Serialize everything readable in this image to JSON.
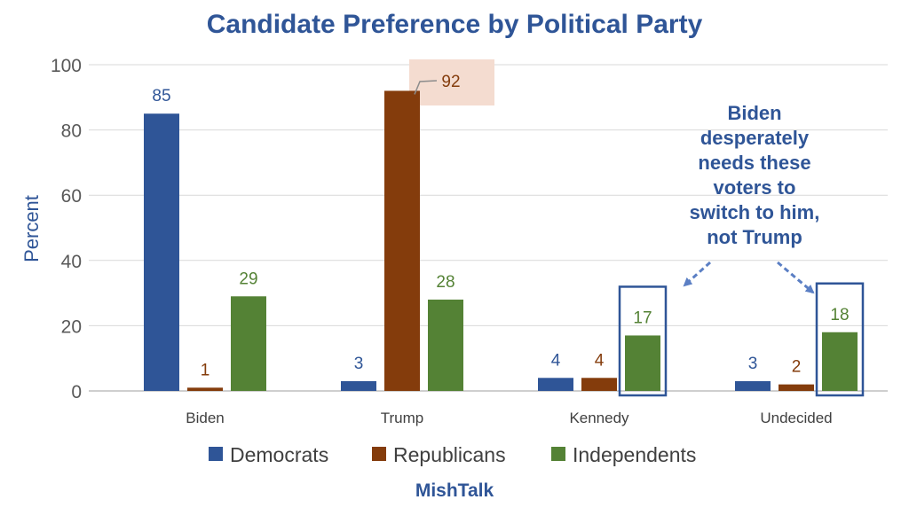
{
  "chart_data": {
    "type": "bar",
    "title": "Candidate Preference by Political Party",
    "ylabel": "Percent",
    "xlabel": "",
    "ylim": [
      0,
      100
    ],
    "yticks": [
      0,
      20,
      40,
      60,
      80,
      100
    ],
    "grid": true,
    "legend_position": "bottom",
    "categories": [
      "Biden",
      "Trump",
      "Kennedy",
      "Undecided"
    ],
    "series": [
      {
        "name": "Democrats",
        "color": "#2f5597",
        "values": [
          85,
          3,
          4,
          3
        ]
      },
      {
        "name": "Republicans",
        "color": "#843c0c",
        "values": [
          1,
          92,
          4,
          2
        ]
      },
      {
        "name": "Independents",
        "color": "#548235",
        "values": [
          29,
          28,
          17,
          18
        ]
      }
    ],
    "annotation": {
      "lines": [
        "Biden",
        "desperately",
        "needs these",
        "voters to",
        "switch to him,",
        "not Trump"
      ],
      "color": "#2f5597"
    },
    "highlight_box_color": "#f4dcd0",
    "source": "MishTalk"
  }
}
